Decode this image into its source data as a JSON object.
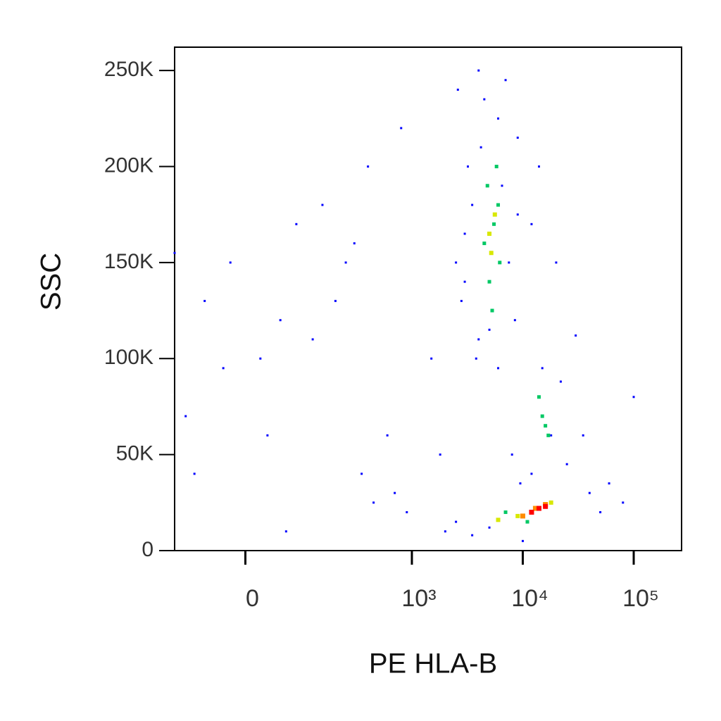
{
  "chart_data": {
    "type": "scatter",
    "x_label": "PE HLA-B",
    "y_label": "SSC",
    "xscale": "biexponential",
    "xlim": [
      -130,
      270000
    ],
    "ylim": [
      0,
      262144
    ],
    "xticks": [
      {
        "value": 0,
        "label": "0"
      },
      {
        "value": 1000,
        "label": "10³"
      },
      {
        "value": 10000,
        "label": "10⁴"
      },
      {
        "value": 100000,
        "label": "10⁵"
      }
    ],
    "yticks": [
      {
        "value": 0,
        "label": "0"
      },
      {
        "value": 50000,
        "label": "50K"
      },
      {
        "value": 100000,
        "label": "100K"
      },
      {
        "value": 150000,
        "label": "150K"
      },
      {
        "value": 200000,
        "label": "200K"
      },
      {
        "value": 250000,
        "label": "250K"
      }
    ],
    "series": [
      {
        "color": "#0000ff",
        "x": [
          -60,
          -30,
          -80,
          -20,
          20,
          50,
          80,
          120,
          150,
          200,
          250,
          300,
          400,
          600,
          700,
          900,
          450,
          -100,
          30,
          60,
          350,
          800,
          1500,
          1800,
          2500,
          2600,
          3000,
          3200,
          4000,
          4500,
          7000,
          9000,
          12000,
          20000,
          30000,
          14000,
          6000,
          8000,
          9500,
          25000,
          40000,
          60000,
          80000,
          100000,
          15000,
          22000,
          3500,
          50000,
          -130,
          10000,
          2000,
          5000,
          18000,
          12000,
          35000,
          4000,
          2800,
          3500,
          4200,
          6500,
          7500,
          5000,
          3000,
          8500,
          6000,
          3800,
          9000,
          2500
        ],
        "values": [
          130000,
          95000,
          40000,
          150000,
          100000,
          120000,
          170000,
          110000,
          180000,
          130000,
          150000,
          160000,
          200000,
          60000,
          30000,
          20000,
          25000,
          70000,
          60000,
          10000,
          40000,
          220000,
          100000,
          50000,
          15000,
          240000,
          140000,
          200000,
          110000,
          235000,
          245000,
          215000,
          170000,
          150000,
          112000,
          200000,
          95000,
          50000,
          35000,
          45000,
          30000,
          35000,
          25000,
          80000,
          95000,
          88000,
          8000,
          20000,
          155000,
          5000,
          10000,
          12000,
          60000,
          40000,
          60000,
          250000,
          130000,
          180000,
          210000,
          190000,
          150000,
          115000,
          165000,
          120000,
          225000,
          100000,
          175000,
          150000
        ]
      },
      {
        "color": "#00c864",
        "x": [
          4500,
          5500,
          5000,
          6000,
          4800,
          5300,
          6200,
          5800,
          15000,
          17000,
          14000,
          16000,
          7000,
          11000
        ],
        "values": [
          160000,
          170000,
          140000,
          180000,
          190000,
          125000,
          150000,
          200000,
          70000,
          60000,
          80000,
          65000,
          20000,
          15000
        ]
      },
      {
        "color": "#d8e800",
        "x": [
          5200,
          5600,
          5000,
          6000,
          9000,
          18000
        ],
        "values": [
          155000,
          175000,
          165000,
          16000,
          18000,
          25000
        ]
      },
      {
        "color": "#ff8c00",
        "x": [
          13000,
          10000,
          16000
        ],
        "values": [
          22000,
          18000,
          24000
        ]
      },
      {
        "color": "#ff0000",
        "x": [
          14000,
          12000,
          16000
        ],
        "values": [
          22000,
          20000,
          23000
        ]
      }
    ]
  }
}
